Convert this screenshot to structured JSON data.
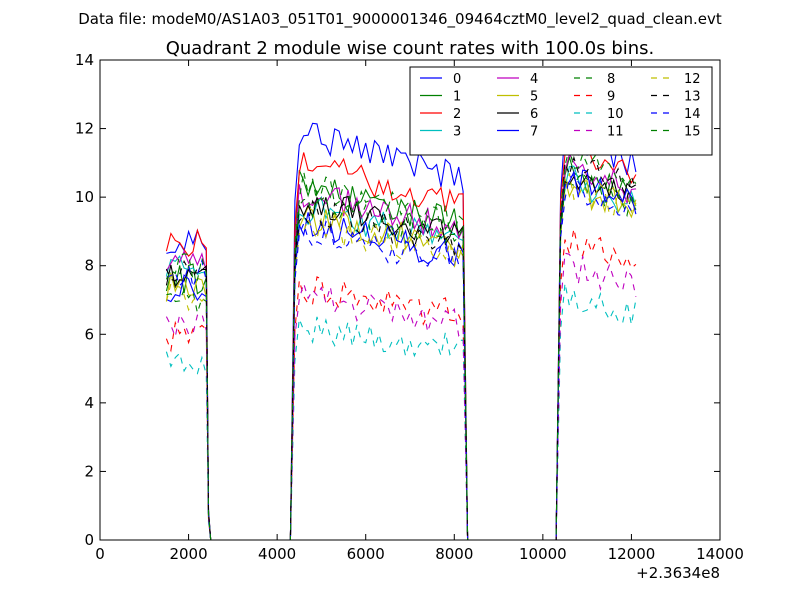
{
  "suptitle": "Data file: modeM0/AS1A03_051T01_9000001346_09464cztM0_level2_quad_clean.evt",
  "chart_data": {
    "type": "line",
    "title": "Quadrant 2 module wise count rates with 100.0s bins.",
    "xlabel": "",
    "ylabel": "",
    "x_offset_label": "+2.3634e8",
    "xlim": [
      0,
      14000
    ],
    "ylim": [
      0,
      14
    ],
    "xticks": [
      "0",
      "2000",
      "4000",
      "6000",
      "8000",
      "10000",
      "12000",
      "14000"
    ],
    "yticks": [
      "0",
      "2",
      "4",
      "6",
      "8",
      "10",
      "12",
      "14"
    ],
    "grid": false,
    "legend_position": "top-right",
    "legend_columns": 4,
    "segments": [
      {
        "start": 1500,
        "end": 2400
      },
      {
        "start": 4400,
        "end": 8200
      },
      {
        "start": 10400,
        "end": 12100
      }
    ],
    "series": [
      {
        "name": "0",
        "color": "#0000ff",
        "dash": "solid",
        "levels": [
          8.8,
          11.0,
          11.2
        ]
      },
      {
        "name": "1",
        "color": "#008000",
        "dash": "solid",
        "levels": [
          7.6,
          9.6,
          10.2
        ]
      },
      {
        "name": "2",
        "color": "#ff0000",
        "dash": "solid",
        "levels": [
          8.6,
          10.2,
          11.0
        ]
      },
      {
        "name": "3",
        "color": "#00bfbf",
        "dash": "solid",
        "levels": [
          8.0,
          9.0,
          10.0
        ]
      },
      {
        "name": "4",
        "color": "#bf00bf",
        "dash": "solid",
        "levels": [
          8.2,
          9.4,
          10.4
        ]
      },
      {
        "name": "5",
        "color": "#bfbf00",
        "dash": "solid",
        "levels": [
          7.4,
          8.8,
          9.8
        ]
      },
      {
        "name": "6",
        "color": "#000000",
        "dash": "solid",
        "levels": [
          7.8,
          9.2,
          10.2
        ]
      },
      {
        "name": "7",
        "color": "#0000ff",
        "dash": "solid",
        "levels": [
          7.4,
          8.6,
          10.0
        ]
      },
      {
        "name": "8",
        "color": "#008000",
        "dash": "dashed",
        "levels": [
          7.0,
          9.2,
          10.0
        ]
      },
      {
        "name": "9",
        "color": "#ff0000",
        "dash": "dashed",
        "levels": [
          5.9,
          6.8,
          8.3
        ]
      },
      {
        "name": "10",
        "color": "#00bfbf",
        "dash": "dashed",
        "levels": [
          5.2,
          5.8,
          6.8
        ]
      },
      {
        "name": "11",
        "color": "#bf00bf",
        "dash": "dashed",
        "levels": [
          6.2,
          6.6,
          7.6
        ]
      },
      {
        "name": "12",
        "color": "#bfbf00",
        "dash": "dashed",
        "levels": [
          7.1,
          8.6,
          9.8
        ]
      },
      {
        "name": "13",
        "color": "#000000",
        "dash": "dashed",
        "levels": [
          7.8,
          9.0,
          10.4
        ]
      },
      {
        "name": "14",
        "color": "#0000ff",
        "dash": "dashed",
        "levels": [
          7.8,
          8.4,
          9.8
        ]
      },
      {
        "name": "15",
        "color": "#008000",
        "dash": "dashed",
        "levels": [
          8.0,
          9.6,
          10.6
        ]
      }
    ]
  }
}
